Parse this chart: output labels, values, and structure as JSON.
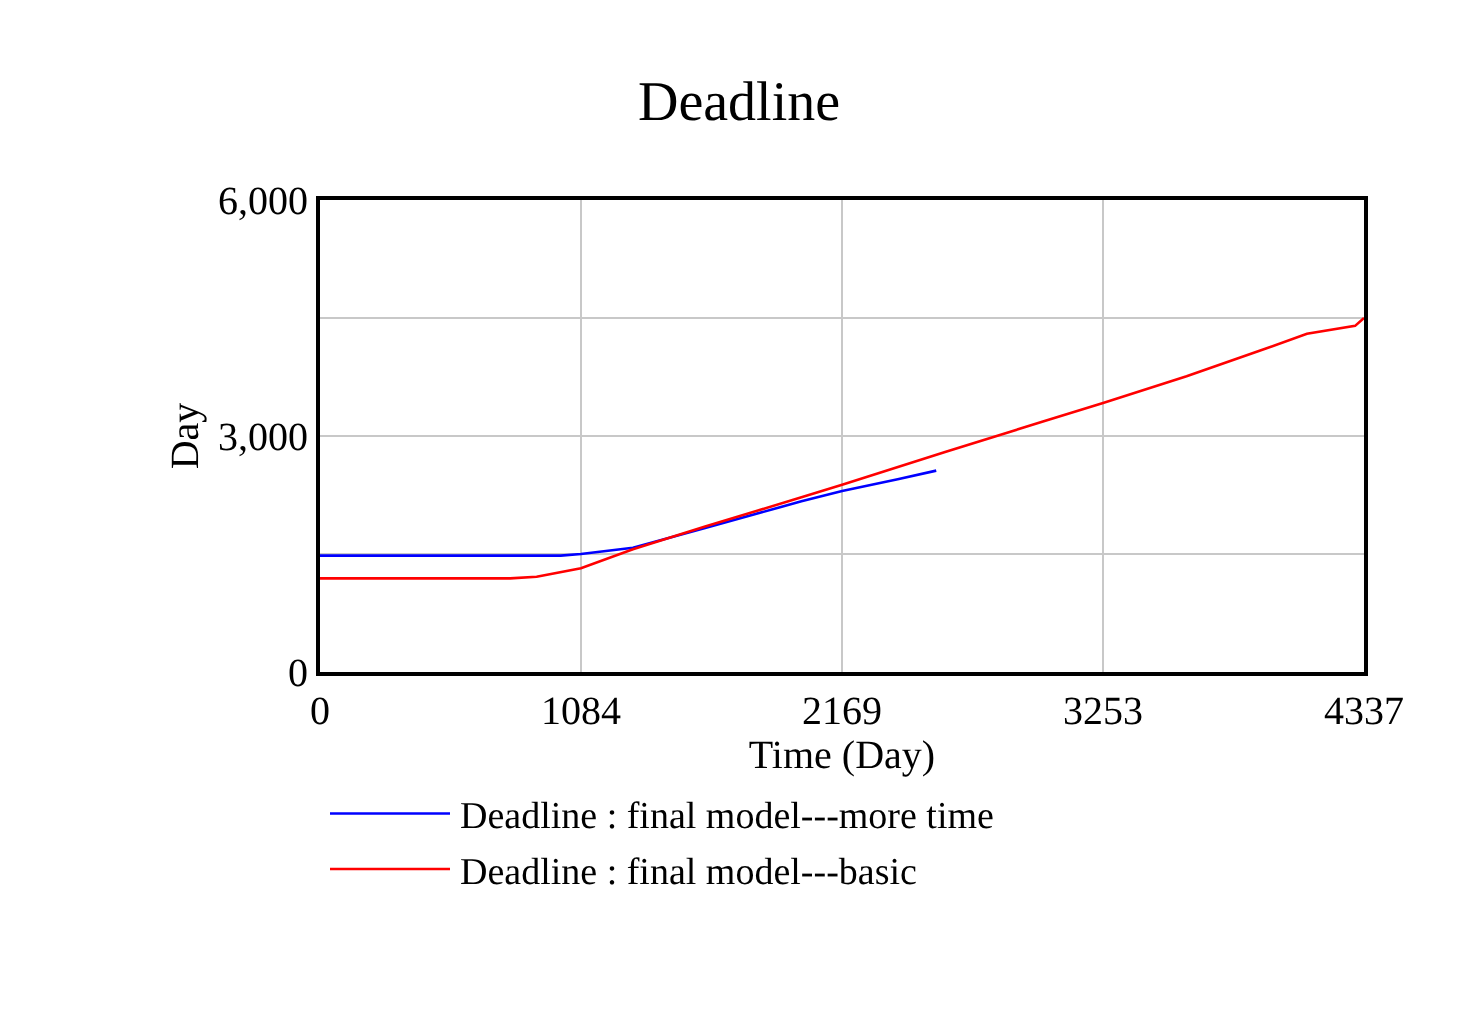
{
  "chart_data": {
    "type": "line",
    "title": "Deadline",
    "xlabel": "Time (Day)",
    "ylabel": "Day",
    "xlim": [
      0,
      4337
    ],
    "xticks": [
      0,
      1084,
      2169,
      3253,
      4337
    ],
    "ylim": [
      0,
      6000
    ],
    "yticks": [
      0,
      {
        "value": 1500,
        "label": null
      },
      {
        "value": 3000,
        "label": "3,000"
      },
      {
        "value": 4500,
        "label": null
      },
      {
        "value": 6000,
        "label": "6,000"
      }
    ],
    "grid": true,
    "legend": "bottom",
    "marker": "none",
    "line_style": "solid",
    "series": [
      {
        "name": "Deadline : final model---more time",
        "color": "#0000ff",
        "x": [
          0,
          1000,
          1084,
          1300,
          1600,
          2000,
          2169,
          2400,
          2560
        ],
        "values": [
          1480,
          1480,
          1500,
          1580,
          1830,
          2170,
          2300,
          2450,
          2560
        ]
      },
      {
        "name": "Deadline : final model---basic",
        "color": "#ff0000",
        "x": [
          0,
          790,
          900,
          1084,
          1300,
          1600,
          2000,
          2169,
          2600,
          3000,
          3253,
          3600,
          3900,
          4100,
          4300,
          4337
        ],
        "values": [
          1190,
          1190,
          1210,
          1320,
          1560,
          1850,
          2220,
          2380,
          2800,
          3180,
          3420,
          3760,
          4080,
          4300,
          4400,
          4500
        ]
      }
    ]
  }
}
